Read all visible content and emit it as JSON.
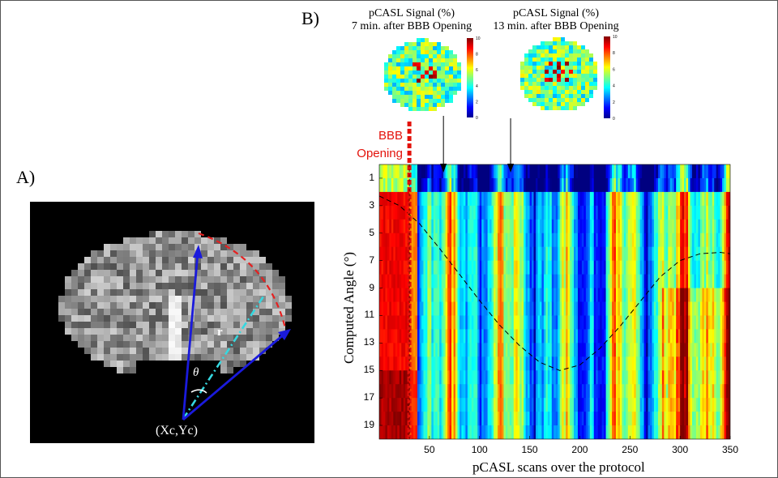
{
  "panel_a": {
    "letter": "A)",
    "center_label": "(Xc,Yc)",
    "radius_label": "r",
    "angle_label": "θ",
    "colors": {
      "arrows": "#1a1adc",
      "radius": "#35d8e0",
      "arc": "#e62020"
    }
  },
  "panel_b": {
    "letter": "B)",
    "maps": [
      {
        "title_line1": "pCASL Signal (%)",
        "title_line2": "7 min. after BBB Opening",
        "colorbar_ticks": [
          "10",
          "8",
          "6",
          "4",
          "2",
          "0"
        ]
      },
      {
        "title_line1": "pCASL Signal (%)",
        "title_line2": "13 min. after BBB Opening",
        "colorbar_ticks": [
          "10",
          "8",
          "6",
          "4",
          "2",
          "0"
        ]
      }
    ],
    "event_label_line1": "BBB",
    "event_label_line2": "Opening",
    "event_color": "#e3120b"
  },
  "chart_data": {
    "type": "heatmap",
    "xlabel": "pCASL scans over the protocol",
    "ylabel": "Computed Angle (°)",
    "xlim": [
      0,
      350
    ],
    "ylim": [
      20,
      0
    ],
    "x_ticks": [
      "50",
      "100",
      "150",
      "200",
      "250",
      "300",
      "350"
    ],
    "x_tick_values": [
      50,
      100,
      150,
      200,
      250,
      300,
      350
    ],
    "y_ticks": [
      "1",
      "3",
      "5",
      "7",
      "9",
      "11",
      "13",
      "15",
      "17",
      "19"
    ],
    "y_tick_values": [
      1,
      3,
      5,
      7,
      9,
      11,
      13,
      15,
      17,
      19
    ],
    "colormap": "jet",
    "bbb_opening_scan": 30,
    "map_arrow_scans": [
      64,
      131
    ],
    "dashed_curve": {
      "x": [
        0,
        20,
        40,
        60,
        80,
        100,
        120,
        140,
        160,
        180,
        200,
        220,
        240,
        260,
        280,
        300,
        320,
        340,
        350
      ],
      "y": [
        2.3,
        3.0,
        4.3,
        6.1,
        8.0,
        9.9,
        11.7,
        13.2,
        14.4,
        15.0,
        14.6,
        13.4,
        11.8,
        10.0,
        8.2,
        7.0,
        6.5,
        6.4,
        6.5
      ]
    }
  }
}
